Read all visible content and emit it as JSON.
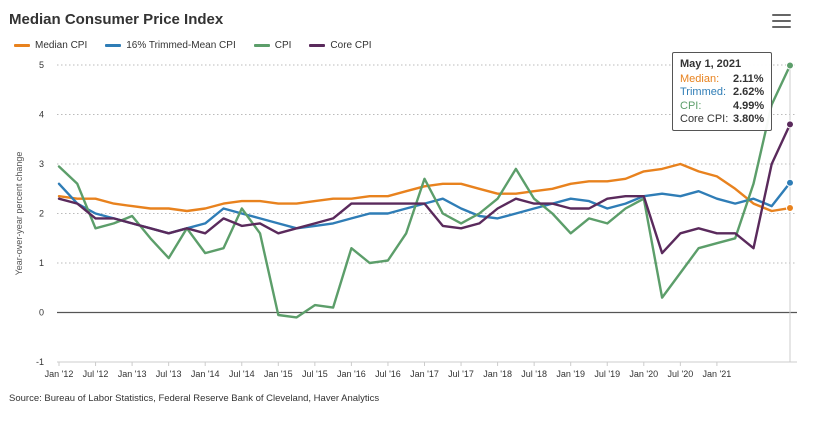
{
  "chart_data": {
    "type": "line",
    "title": "Median Consumer Price Index",
    "ylabel": "Year-over-year percent change",
    "xlabel": "",
    "ylim": [
      -1,
      5
    ],
    "yticks": [
      "-1",
      "0",
      "1",
      "2",
      "3",
      "4",
      "5"
    ],
    "xticks": [
      "Jan '12",
      "Jul '12",
      "Jan '13",
      "Jul '13",
      "Jan '14",
      "Jul '14",
      "Jan '15",
      "Jul '15",
      "Jan '16",
      "Jul '16",
      "Jan '17",
      "Jul '17",
      "Jan '18",
      "Jul '18",
      "Jan '19",
      "Jul '19",
      "Jan '20",
      "Jul '20",
      "Jan '21"
    ],
    "x_start": "2012-01",
    "x_step": "quarter",
    "series": [
      {
        "name": "Median CPI",
        "color": "#e8821e",
        "values": [
          2.35,
          2.3,
          2.3,
          2.2,
          2.15,
          2.1,
          2.1,
          2.05,
          2.1,
          2.2,
          2.25,
          2.25,
          2.2,
          2.2,
          2.25,
          2.3,
          2.3,
          2.35,
          2.35,
          2.45,
          2.55,
          2.6,
          2.6,
          2.5,
          2.4,
          2.4,
          2.45,
          2.5,
          2.6,
          2.65,
          2.65,
          2.7,
          2.85,
          2.9,
          3.0,
          2.85,
          2.75,
          2.5,
          2.2,
          2.05,
          2.11
        ]
      },
      {
        "name": "16% Trimmed-Mean CPI",
        "color": "#2f7db6",
        "values": [
          2.6,
          2.2,
          2.0,
          1.9,
          1.8,
          1.7,
          1.6,
          1.7,
          1.8,
          2.1,
          2.0,
          1.9,
          1.8,
          1.7,
          1.75,
          1.8,
          1.9,
          2.0,
          2.0,
          2.1,
          2.2,
          2.3,
          2.1,
          1.95,
          1.9,
          2.0,
          2.1,
          2.2,
          2.3,
          2.25,
          2.1,
          2.2,
          2.35,
          2.4,
          2.35,
          2.45,
          2.3,
          2.2,
          2.3,
          2.15,
          2.62
        ]
      },
      {
        "name": "CPI",
        "color": "#5c9e6a",
        "values": [
          2.95,
          2.6,
          1.7,
          1.8,
          1.95,
          1.5,
          1.1,
          1.7,
          1.2,
          1.3,
          2.1,
          1.6,
          -0.05,
          -0.1,
          0.15,
          0.1,
          1.3,
          1.0,
          1.05,
          1.6,
          2.7,
          2.0,
          1.8,
          2.0,
          2.3,
          2.9,
          2.3,
          2.0,
          1.6,
          1.9,
          1.8,
          2.1,
          2.3,
          0.3,
          0.8,
          1.3,
          1.4,
          1.5,
          2.6,
          4.2,
          4.99
        ]
      },
      {
        "name": "Core CPI",
        "color": "#5a2a5c",
        "values": [
          2.3,
          2.2,
          1.9,
          1.9,
          1.8,
          1.7,
          1.6,
          1.7,
          1.6,
          1.9,
          1.75,
          1.8,
          1.6,
          1.7,
          1.8,
          1.9,
          2.2,
          2.2,
          2.2,
          2.2,
          2.2,
          1.75,
          1.7,
          1.8,
          2.1,
          2.3,
          2.2,
          2.2,
          2.1,
          2.1,
          2.3,
          2.35,
          2.35,
          1.2,
          1.6,
          1.7,
          1.6,
          1.6,
          1.3,
          3.0,
          3.8
        ]
      }
    ]
  },
  "header": {
    "title": "Median Consumer Price Index",
    "menu_icon": "hamburger-menu-icon"
  },
  "legend": [
    {
      "label": "Median CPI",
      "color": "#e8821e"
    },
    {
      "label": "16% Trimmed-Mean CPI",
      "color": "#2f7db6"
    },
    {
      "label": "CPI",
      "color": "#5c9e6a"
    },
    {
      "label": "Core CPI",
      "color": "#5a2a5c"
    }
  ],
  "tooltip": {
    "date": "May 1, 2021",
    "rows": [
      {
        "label": "Median:",
        "value": "2.11%",
        "color": "#e8821e"
      },
      {
        "label": "Trimmed:",
        "value": "2.62%",
        "color": "#2f7db6"
      },
      {
        "label": "CPI:",
        "value": "4.99%",
        "color": "#5c9e6a"
      },
      {
        "label": "Core CPI:",
        "value": "3.80%",
        "color": "#333333"
      }
    ]
  },
  "source": "Source: Bureau of Labor Statistics, Federal Reserve Bank of Cleveland, Haver Analytics"
}
